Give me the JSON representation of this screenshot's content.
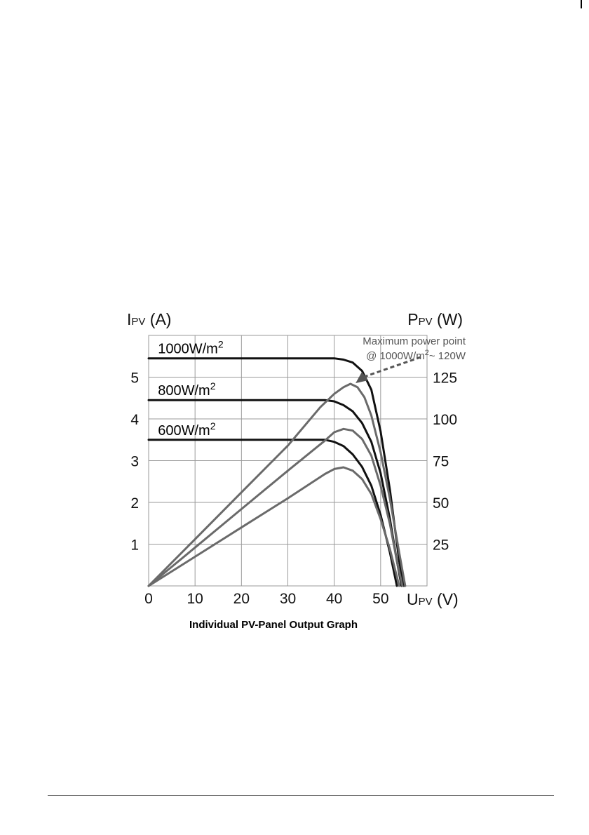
{
  "chart_data": {
    "type": "line",
    "title": "Individual PV-Panel Output Graph",
    "xlabel": {
      "main": "U",
      "sub": "PV",
      "unit": "(V)"
    },
    "ylabel_left": {
      "main": "I",
      "sub": "PV",
      "unit": "(A)"
    },
    "ylabel_right": {
      "main": "P",
      "sub": "PV",
      "unit": "(W)"
    },
    "xlim": [
      0,
      60
    ],
    "ylim_left": [
      0,
      6
    ],
    "ylim_right": [
      0,
      150
    ],
    "x_ticks": [
      "0",
      "10",
      "20",
      "30",
      "40",
      "50"
    ],
    "y_left_ticks": [
      "1",
      "2",
      "3",
      "4",
      "5"
    ],
    "y_right_ticks": [
      "25",
      "50",
      "75",
      "100",
      "125"
    ],
    "grid": true,
    "annotation": {
      "line1": "Maximum power point",
      "line2_prefix": "@ 1000W/m",
      "line2_sup": "2",
      "line2_suffix": "~ 120W",
      "target": [
        44,
        121
      ]
    },
    "colors": {
      "current": "#111111",
      "power": "#6a6a6a",
      "grid": "#9a9a9a"
    },
    "series": [
      {
        "name": "1000W/m",
        "sup": "2",
        "kind": "current",
        "axis": "left",
        "x": [
          0,
          40,
          42,
          44,
          46,
          48,
          50,
          52,
          54,
          55
        ],
        "y": [
          5.45,
          5.45,
          5.42,
          5.35,
          5.15,
          4.7,
          3.7,
          2.3,
          0.6,
          0
        ]
      },
      {
        "name": "800W/m",
        "sup": "2",
        "kind": "current",
        "axis": "left",
        "x": [
          0,
          38,
          40,
          42,
          44,
          46,
          48,
          50,
          52,
          53.5,
          54.5
        ],
        "y": [
          4.45,
          4.45,
          4.42,
          4.33,
          4.18,
          3.9,
          3.45,
          2.7,
          1.6,
          0.6,
          0
        ]
      },
      {
        "name": "600W/m",
        "sup": "2",
        "kind": "current",
        "axis": "left",
        "x": [
          0,
          38,
          40,
          42,
          44,
          46,
          48,
          50,
          52,
          53.5
        ],
        "y": [
          3.5,
          3.5,
          3.45,
          3.35,
          3.15,
          2.85,
          2.4,
          1.7,
          0.8,
          0
        ]
      },
      {
        "kind": "power",
        "axis": "right",
        "x": [
          0,
          10,
          20,
          30,
          37,
          40,
          42,
          43.5,
          45,
          46.5,
          48,
          50,
          52,
          54,
          55.3
        ],
        "y": [
          0,
          28,
          56,
          84,
          107,
          115,
          119,
          121,
          119,
          113,
          102,
          80,
          52,
          20,
          0
        ]
      },
      {
        "kind": "power",
        "axis": "right",
        "x": [
          0,
          10,
          20,
          30,
          38,
          40,
          42,
          44,
          46,
          48,
          50,
          52,
          53.5,
          54.7
        ],
        "y": [
          0,
          23,
          46,
          69,
          87,
          92,
          94,
          93,
          88,
          78,
          60,
          37,
          15,
          0
        ]
      },
      {
        "kind": "power",
        "axis": "right",
        "x": [
          0,
          10,
          20,
          30,
          38,
          40,
          42,
          44,
          46,
          48,
          50,
          52,
          54
        ],
        "y": [
          0,
          17.5,
          35,
          52.5,
          67,
          70,
          71,
          69,
          64,
          55,
          40,
          22,
          0
        ]
      }
    ]
  }
}
